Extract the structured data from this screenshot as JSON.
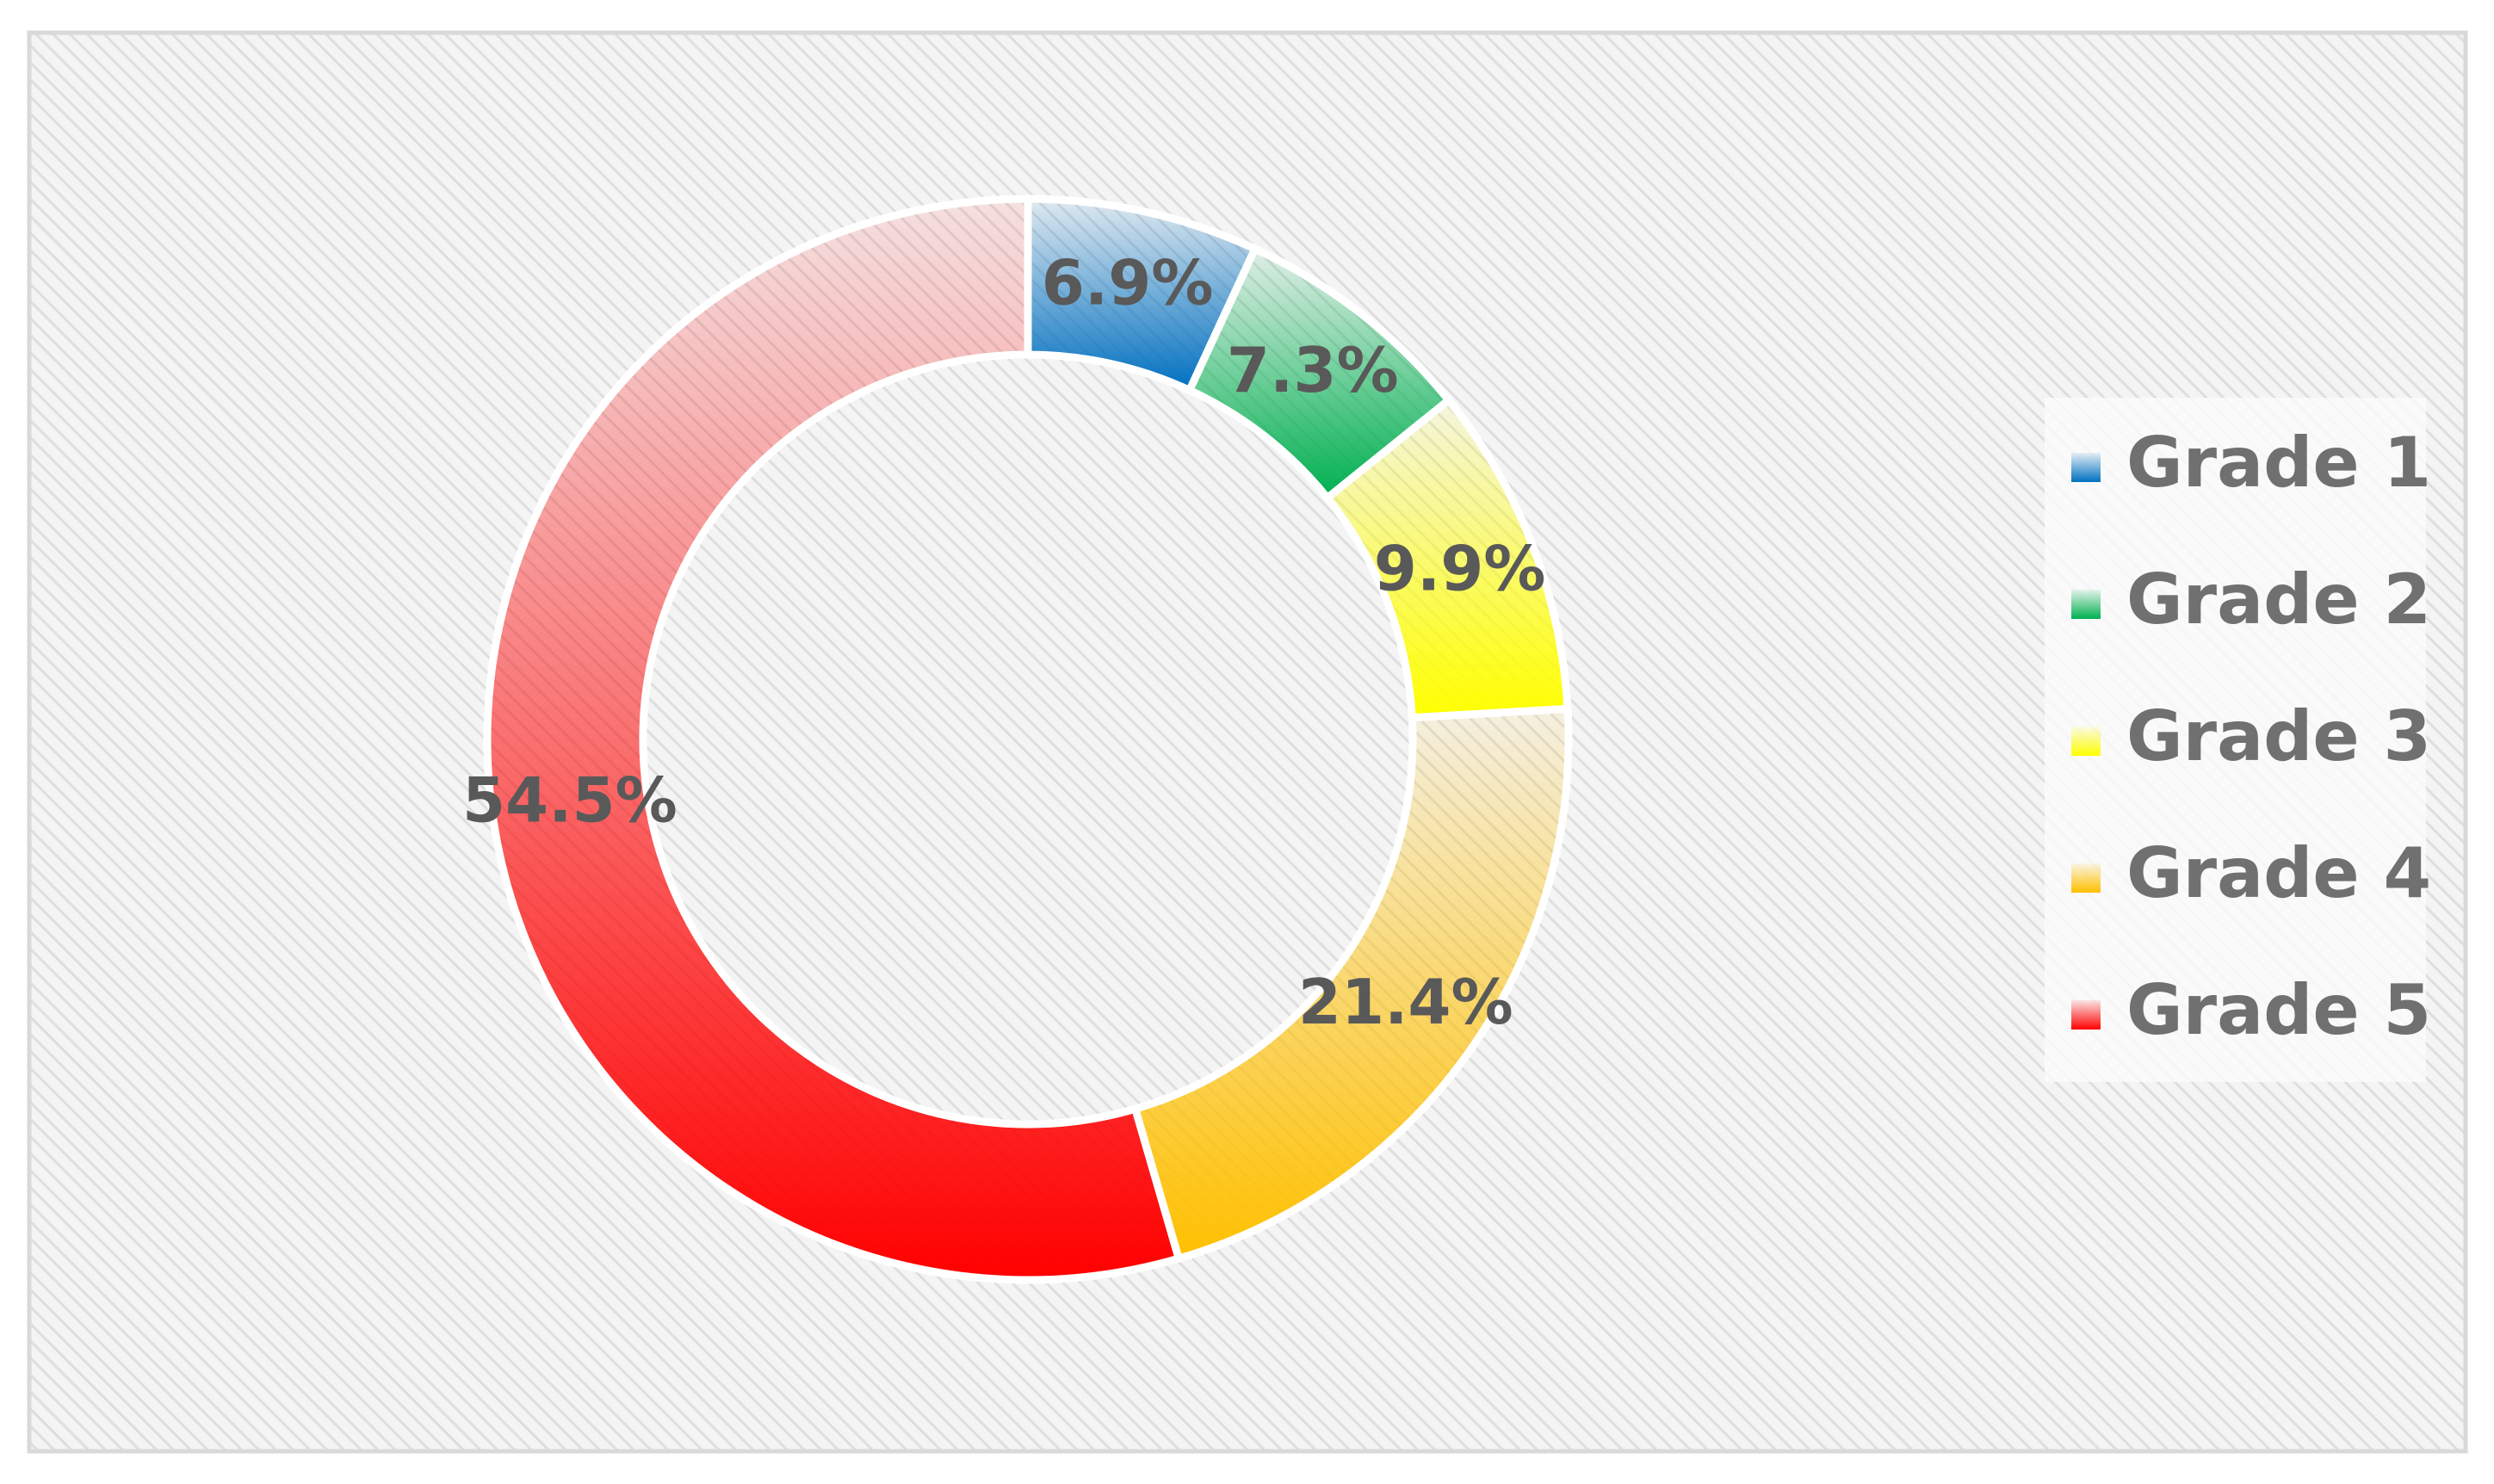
{
  "chart_data": {
    "type": "donut",
    "categories": [
      "Grade 1",
      "Grade 2",
      "Grade 3",
      "Grade 4",
      "Grade 5"
    ],
    "values": [
      6.9,
      7.3,
      9.9,
      21.4,
      54.5
    ],
    "value_labels": [
      "6.9%",
      "7.3%",
      "9.9%",
      "21.4%",
      "54.5%"
    ],
    "colors": [
      "#0070c0",
      "#00b050",
      "#ffff00",
      "#ffc000",
      "#ff0000"
    ],
    "legend": "right"
  }
}
